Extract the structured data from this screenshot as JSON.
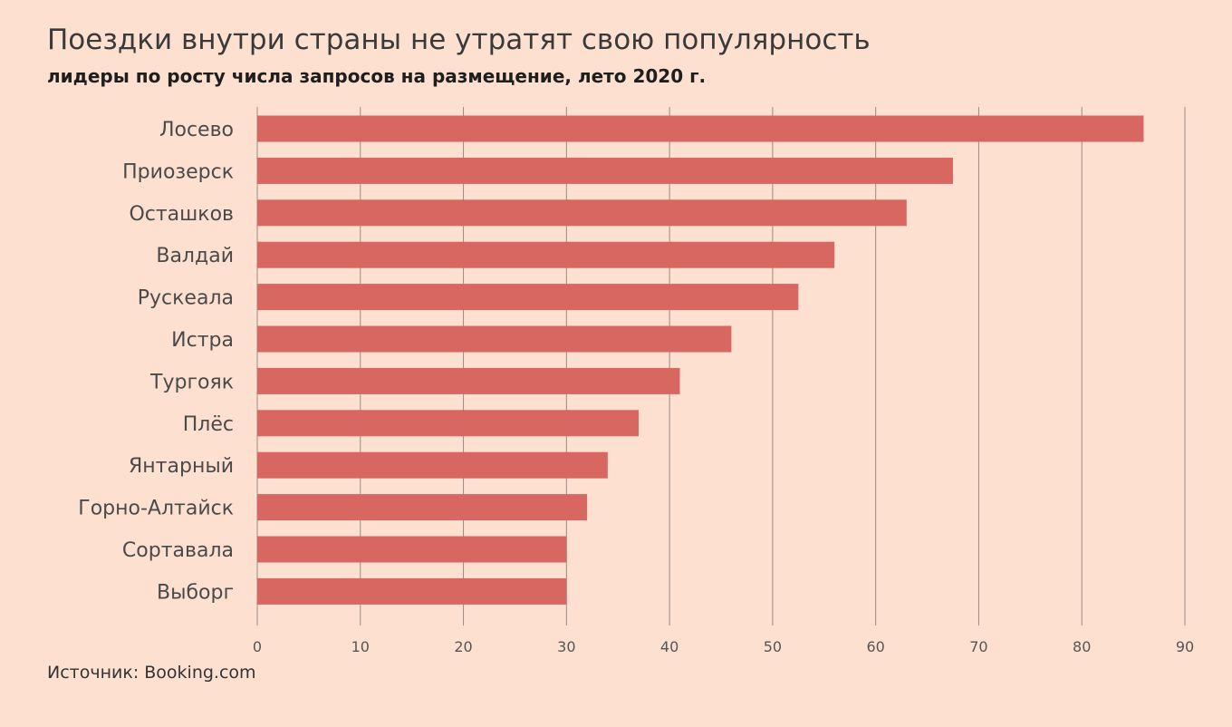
{
  "header": {
    "title": "Поездки внутри страны не утратят свою популярность",
    "subtitle": "лидеры по росту числа запросов на размещение, лето 2020 г."
  },
  "footer": {
    "source": "Источник: Booking.com"
  },
  "colors": {
    "background": "#FDE0D0",
    "bar": "#D86661",
    "grid": "#9A8A84",
    "label": "#4a4a4a",
    "tick": "#555555"
  },
  "chart_data": {
    "type": "bar",
    "orientation": "horizontal",
    "title": "Поездки внутри страны не утратят свою популярность",
    "subtitle": "лидеры по росту числа запросов на размещение, лето 2020 г.",
    "categories": [
      "Лосево",
      "Приозерск",
      "Осташков",
      "Валдай",
      "Рускеала",
      "Истра",
      "Тургояк",
      "Плёс",
      "Янтарный",
      "Горно-Алтайск",
      "Сортавала",
      "Выборг"
    ],
    "values": [
      86,
      67.5,
      63,
      56,
      52.5,
      46,
      41,
      37,
      34,
      32,
      30,
      30
    ],
    "xlim": [
      0,
      90
    ],
    "xticks": [
      0,
      10,
      20,
      30,
      40,
      50,
      60,
      70,
      80,
      90
    ],
    "grid": "vertical",
    "legend": "none"
  }
}
